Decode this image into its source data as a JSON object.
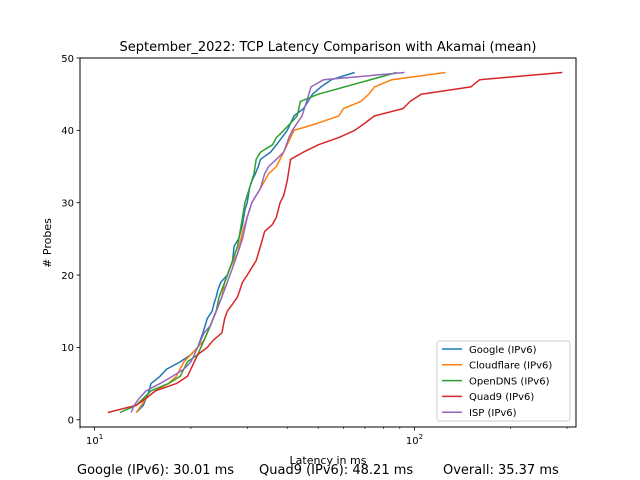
{
  "chart_data": {
    "type": "line",
    "title": "September_2022: TCP Latency Comparison with Akamai (mean)",
    "xlabel": "Latency in ms",
    "ylabel": "# Probes",
    "xscale": "log",
    "xlim": [
      9,
      320
    ],
    "ylim": [
      -1,
      50
    ],
    "x_ticks": [
      {
        "value": 10,
        "label": "10^1"
      },
      {
        "value": 100,
        "label": "10^2"
      }
    ],
    "y_ticks": [
      0,
      10,
      20,
      30,
      40,
      50
    ],
    "grid": false,
    "legend_position": "lower right",
    "series": [
      {
        "name": "Google (IPv6)",
        "color": "#1f77b4",
        "points": [
          [
            13.5,
            1
          ],
          [
            14.2,
            2
          ],
          [
            14.8,
            4
          ],
          [
            15.0,
            5
          ],
          [
            16.0,
            6
          ],
          [
            16.8,
            7
          ],
          [
            18.5,
            8
          ],
          [
            20.0,
            9
          ],
          [
            21.0,
            10
          ],
          [
            21.8,
            12
          ],
          [
            22.5,
            14
          ],
          [
            23.3,
            15
          ],
          [
            23.6,
            16
          ],
          [
            24.0,
            17
          ],
          [
            24.3,
            18
          ],
          [
            24.8,
            19
          ],
          [
            26.0,
            20
          ],
          [
            26.5,
            21
          ],
          [
            27.0,
            22
          ],
          [
            27.3,
            24
          ],
          [
            28.2,
            25
          ],
          [
            29.0,
            27
          ],
          [
            29.5,
            29
          ],
          [
            30.0,
            30
          ],
          [
            30.5,
            32
          ],
          [
            31.0,
            33
          ],
          [
            31.8,
            34
          ],
          [
            32.5,
            35
          ],
          [
            33.0,
            36
          ],
          [
            35.5,
            37
          ],
          [
            37.0,
            38
          ],
          [
            38.5,
            39
          ],
          [
            40.0,
            40
          ],
          [
            42.0,
            42
          ],
          [
            45.0,
            43
          ],
          [
            46.5,
            44
          ],
          [
            48.0,
            45
          ],
          [
            51.0,
            46
          ],
          [
            55.0,
            47
          ],
          [
            65.0,
            48
          ]
        ]
      },
      {
        "name": "Cloudflare (IPv6)",
        "color": "#ff7f0e",
        "points": [
          [
            13.5,
            1
          ],
          [
            14.5,
            3
          ],
          [
            15.5,
            4
          ],
          [
            17.0,
            5
          ],
          [
            18.0,
            6
          ],
          [
            19.0,
            8
          ],
          [
            20.0,
            9
          ],
          [
            22.0,
            11
          ],
          [
            23.0,
            13
          ],
          [
            24.0,
            15
          ],
          [
            25.0,
            17
          ],
          [
            25.5,
            19
          ],
          [
            26.5,
            21
          ],
          [
            28.0,
            23
          ],
          [
            29.0,
            26
          ],
          [
            30.0,
            28
          ],
          [
            31.0,
            30
          ],
          [
            33.0,
            32
          ],
          [
            35.0,
            34
          ],
          [
            37.0,
            35
          ],
          [
            39.0,
            37
          ],
          [
            41.0,
            39
          ],
          [
            42.0,
            40
          ],
          [
            50.0,
            41
          ],
          [
            58.0,
            42
          ],
          [
            60.0,
            43
          ],
          [
            68.0,
            44
          ],
          [
            72.0,
            45
          ],
          [
            75.0,
            46
          ],
          [
            85.0,
            47
          ],
          [
            125.0,
            48
          ]
        ]
      },
      {
        "name": "OpenDNS (IPv6)",
        "color": "#2ca02c",
        "points": [
          [
            12.0,
            1
          ],
          [
            13.5,
            2
          ],
          [
            15.0,
            4
          ],
          [
            17.0,
            5
          ],
          [
            18.5,
            6
          ],
          [
            19.5,
            8
          ],
          [
            21.0,
            9
          ],
          [
            22.0,
            11
          ],
          [
            23.0,
            13
          ],
          [
            24.0,
            15
          ],
          [
            24.5,
            17
          ],
          [
            25.5,
            19
          ],
          [
            26.0,
            20
          ],
          [
            27.0,
            22
          ],
          [
            28.0,
            24
          ],
          [
            28.5,
            26
          ],
          [
            29.0,
            28
          ],
          [
            29.5,
            30
          ],
          [
            30.5,
            32
          ],
          [
            31.5,
            34
          ],
          [
            32.0,
            36
          ],
          [
            33.0,
            37
          ],
          [
            36.0,
            38
          ],
          [
            37.0,
            39
          ],
          [
            39.0,
            40
          ],
          [
            41.0,
            41
          ],
          [
            43.0,
            42
          ],
          [
            44.0,
            44
          ],
          [
            50.0,
            45
          ],
          [
            88.0,
            48
          ]
        ]
      },
      {
        "name": "Quad9 (IPv6)",
        "color": "#d62728",
        "points": [
          [
            11.0,
            1
          ],
          [
            13.5,
            2
          ],
          [
            14.5,
            3
          ],
          [
            15.5,
            4
          ],
          [
            18.0,
            5
          ],
          [
            19.5,
            6
          ],
          [
            20.0,
            7
          ],
          [
            21.0,
            9
          ],
          [
            22.5,
            10
          ],
          [
            23.5,
            11
          ],
          [
            25.0,
            12
          ],
          [
            25.5,
            14
          ],
          [
            26.0,
            15
          ],
          [
            27.0,
            16
          ],
          [
            28.0,
            17
          ],
          [
            29.0,
            19
          ],
          [
            30.0,
            20
          ],
          [
            32.0,
            22
          ],
          [
            33.0,
            24
          ],
          [
            34.0,
            26
          ],
          [
            36.0,
            27
          ],
          [
            37.0,
            28
          ],
          [
            38.0,
            30
          ],
          [
            39.0,
            31
          ],
          [
            40.0,
            33
          ],
          [
            41.0,
            36
          ],
          [
            45.0,
            37
          ],
          [
            50.0,
            38
          ],
          [
            58.0,
            39
          ],
          [
            65.0,
            40
          ],
          [
            70.0,
            41
          ],
          [
            75.0,
            42
          ],
          [
            92.0,
            43
          ],
          [
            97.0,
            44
          ],
          [
            105.0,
            45
          ],
          [
            150.0,
            46
          ],
          [
            160.0,
            47
          ],
          [
            290.0,
            48
          ]
        ]
      },
      {
        "name": "ISP (IPv6)",
        "color": "#9467bd",
        "points": [
          [
            13.0,
            1
          ],
          [
            13.3,
            2
          ],
          [
            13.8,
            3
          ],
          [
            14.5,
            4
          ],
          [
            16.0,
            5
          ],
          [
            17.5,
            6
          ],
          [
            19.0,
            7
          ],
          [
            20.0,
            8
          ],
          [
            21.0,
            10
          ],
          [
            22.0,
            12
          ],
          [
            23.0,
            13
          ],
          [
            24.0,
            15
          ],
          [
            25.0,
            17
          ],
          [
            26.0,
            19
          ],
          [
            27.0,
            21
          ],
          [
            28.0,
            23
          ],
          [
            29.0,
            25
          ],
          [
            30.0,
            28
          ],
          [
            31.0,
            30
          ],
          [
            33.0,
            32
          ],
          [
            34.0,
            34
          ],
          [
            35.0,
            35
          ],
          [
            37.0,
            36
          ],
          [
            39.0,
            37
          ],
          [
            40.5,
            39
          ],
          [
            41.5,
            40
          ],
          [
            43.0,
            41
          ],
          [
            44.5,
            42
          ],
          [
            46.0,
            44
          ],
          [
            47.5,
            46
          ],
          [
            52.0,
            47
          ],
          [
            70.0,
            47.5
          ],
          [
            93.0,
            48
          ]
        ]
      }
    ]
  },
  "footer": {
    "google": "Google (IPv6): 30.01 ms",
    "quad9": "Quad9 (IPv6): 48.21 ms",
    "overall": "Overall: 35.37 ms"
  }
}
